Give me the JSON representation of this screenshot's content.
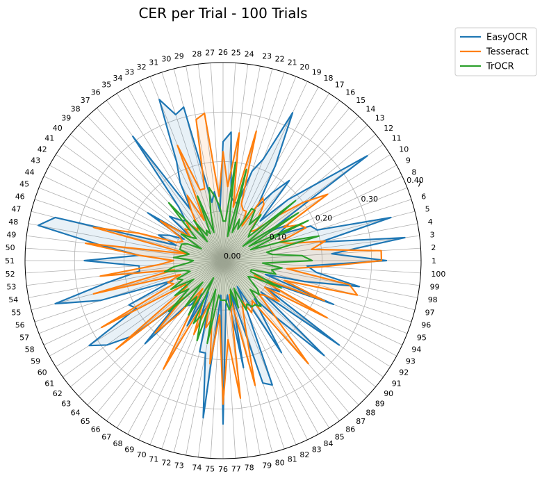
{
  "chart_data": {
    "type": "radar",
    "title": "CER per Trial - 100 Trials",
    "categories": [
      "1",
      "2",
      "3",
      "4",
      "5",
      "6",
      "7",
      "8",
      "9",
      "10",
      "11",
      "12",
      "13",
      "14",
      "15",
      "16",
      "17",
      "18",
      "19",
      "20",
      "21",
      "22",
      "23",
      "24",
      "25",
      "26",
      "27",
      "28",
      "29",
      "30",
      "31",
      "32",
      "33",
      "34",
      "35",
      "36",
      "37",
      "38",
      "39",
      "40",
      "41",
      "42",
      "43",
      "44",
      "45",
      "46",
      "47",
      "48",
      "49",
      "50",
      "51",
      "52",
      "53",
      "54",
      "55",
      "56",
      "57",
      "58",
      "59",
      "60",
      "61",
      "62",
      "63",
      "64",
      "65",
      "66",
      "67",
      "68",
      "69",
      "70",
      "71",
      "72",
      "73",
      "74",
      "75",
      "76",
      "77",
      "78",
      "79",
      "80",
      "81",
      "82",
      "83",
      "84",
      "85",
      "86",
      "87",
      "88",
      "89",
      "90",
      "91",
      "92",
      "93",
      "94",
      "95",
      "96",
      "97",
      "98",
      "99",
      "100"
    ],
    "r_ticks": [
      0.0,
      0.1,
      0.2,
      0.3,
      0.4
    ],
    "r_tick_labels": [
      "0.00",
      "0.10",
      "0.20",
      "0.30",
      "0.40"
    ],
    "rlim": [
      0,
      0.4
    ],
    "grid": true,
    "legend_position": "upper-right outside",
    "series": [
      {
        "name": "EasyOCR",
        "color": "#1f77b4",
        "values": [
          0.33,
          0.22,
          0.37,
          0.2,
          0.35,
          0.2,
          0.19,
          0.12,
          0.15,
          0.11,
          0.36,
          0.24,
          0.18,
          0.11,
          0.21,
          0.17,
          0.13,
          0.22,
          0.33,
          0.22,
          0.19,
          0.12,
          0.12,
          0.13,
          0.26,
          0.24,
          0.1,
          0.14,
          0.12,
          0.32,
          0.31,
          0.35,
          0.22,
          0.18,
          0.12,
          0.31,
          0.14,
          0.11,
          0.12,
          0.14,
          0.08,
          0.18,
          0.09,
          0.12,
          0.14,
          0.1,
          0.35,
          0.38,
          0.25,
          0.17,
          0.28,
          0.17,
          0.17,
          0.24,
          0.35,
          0.26,
          0.11,
          0.21,
          0.2,
          0.32,
          0.29,
          0.24,
          0.13,
          0.23,
          0.12,
          0.11,
          0.08,
          0.15,
          0.07,
          0.12,
          0.09,
          0.19,
          0.19,
          0.32,
          0.07,
          0.33,
          0.09,
          0.07,
          0.22,
          0.07,
          0.26,
          0.27,
          0.12,
          0.06,
          0.22,
          0.13,
          0.1,
          0.16,
          0.28,
          0.1,
          0.29,
          0.1,
          0.13,
          0.1,
          0.24,
          0.09,
          0.17,
          0.28,
          0.19,
          0.17
        ]
      },
      {
        "name": "Tesseract",
        "color": "#ff7f0e",
        "values": [
          0.32,
          0.32,
          0.18,
          0.21,
          0.14,
          0.12,
          0.18,
          0.17,
          0.14,
          0.25,
          0.2,
          0.14,
          0.09,
          0.08,
          0.11,
          0.14,
          0.15,
          0.08,
          0.11,
          0.11,
          0.12,
          0.27,
          0.11,
          0.26,
          0.15,
          0.22,
          0.13,
          0.3,
          0.29,
          0.15,
          0.15,
          0.25,
          0.09,
          0.15,
          0.12,
          0.09,
          0.08,
          0.11,
          0.09,
          0.1,
          0.08,
          0.15,
          0.1,
          0.09,
          0.1,
          0.18,
          0.27,
          0.07,
          0.28,
          0.17,
          0.1,
          0.13,
          0.25,
          0.1,
          0.27,
          0.09,
          0.12,
          0.11,
          0.28,
          0.09,
          0.09,
          0.28,
          0.11,
          0.2,
          0.14,
          0.07,
          0.12,
          0.25,
          0.1,
          0.16,
          0.09,
          0.14,
          0.12,
          0.21,
          0.11,
          0.29,
          0.16,
          0.28,
          0.07,
          0.26,
          0.15,
          0.11,
          0.09,
          0.12,
          0.11,
          0.1,
          0.27,
          0.15,
          0.1,
          0.11,
          0.14,
          0.1,
          0.24,
          0.07,
          0.22,
          0.13,
          0.28,
          0.26,
          0.13,
          0.2
        ]
      },
      {
        "name": "TrOCR",
        "color": "#2ca02c",
        "values": [
          0.18,
          0.16,
          0.1,
          0.09,
          0.2,
          0.12,
          0.06,
          0.19,
          0.06,
          0.18,
          0.05,
          0.19,
          0.07,
          0.08,
          0.12,
          0.09,
          0.12,
          0.12,
          0.07,
          0.09,
          0.06,
          0.19,
          0.05,
          0.2,
          0.08,
          0.08,
          0.11,
          0.13,
          0.15,
          0.1,
          0.06,
          0.14,
          0.06,
          0.07,
          0.06,
          0.1,
          0.05,
          0.16,
          0.1,
          0.07,
          0.08,
          0.1,
          0.05,
          0.08,
          0.09,
          0.09,
          0.09,
          0.07,
          0.08,
          0.1,
          0.06,
          0.07,
          0.1,
          0.12,
          0.08,
          0.07,
          0.1,
          0.09,
          0.12,
          0.07,
          0.12,
          0.09,
          0.15,
          0.06,
          0.12,
          0.09,
          0.13,
          0.04,
          0.14,
          0.12,
          0.17,
          0.06,
          0.17,
          0.07,
          0.08,
          0.08,
          0.08,
          0.1,
          0.09,
          0.06,
          0.1,
          0.06,
          0.11,
          0.1,
          0.11,
          0.11,
          0.12,
          0.08,
          0.1,
          0.09,
          0.07,
          0.06,
          0.07,
          0.13,
          0.06,
          0.06,
          0.11,
          0.1,
          0.12,
          0.08
        ]
      }
    ]
  }
}
